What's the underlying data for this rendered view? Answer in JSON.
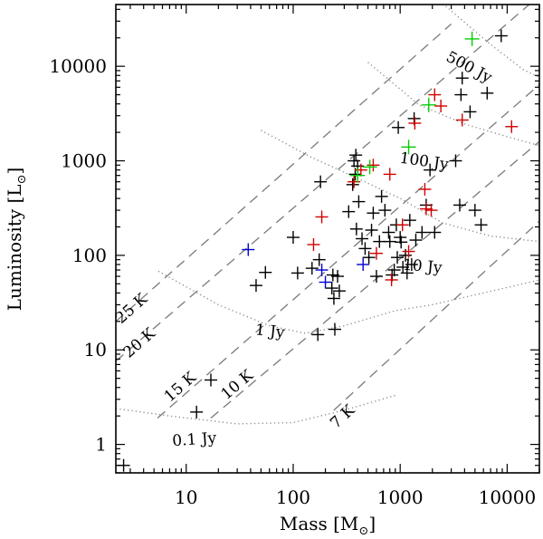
{
  "chart_data": {
    "type": "scatter",
    "xlabel": "Mass [M",
    "xlabel_sub": "⊙",
    "xlabel_end": "]",
    "ylabel": "Luminosity [L",
    "ylabel_sub": "⊙",
    "ylabel_end": "]",
    "x_scale": "log",
    "y_scale": "log",
    "xlim": [
      2.2,
      20000
    ],
    "ylim": [
      0.5,
      45000
    ],
    "xticks": [
      {
        "value": 10,
        "label": "10"
      },
      {
        "value": 100,
        "label": "100"
      },
      {
        "value": 1000,
        "label": "1000"
      },
      {
        "value": 10000,
        "label": "10000"
      }
    ],
    "yticks": [
      {
        "value": 1,
        "label": "1"
      },
      {
        "value": 10,
        "label": "10"
      },
      {
        "value": 100,
        "label": "100"
      },
      {
        "value": 1000,
        "label": "1000"
      },
      {
        "value": 10000,
        "label": "10000"
      }
    ],
    "temperature_lines": [
      {
        "label": "25 K",
        "points": [
          [
            2.2,
            20
          ],
          [
            3000,
            28000
          ]
        ],
        "label_at": [
          3.3,
          25
        ]
      },
      {
        "label": "20 K",
        "points": [
          [
            2.2,
            7.6
          ],
          [
            19000,
            53000
          ]
        ],
        "label_at": [
          3.9,
          10.8
        ]
      },
      {
        "label": "15 K",
        "points": [
          [
            5.4,
            1.9
          ],
          [
            20000,
            6400
          ]
        ],
        "label_at": [
          9.4,
          3.7
        ]
      },
      {
        "label": "10 K",
        "points": [
          [
            17,
            1.9
          ],
          [
            20000,
            1600
          ]
        ],
        "label_at": [
          32,
          3.9
        ]
      },
      {
        "label": "7 K",
        "points": [
          [
            240,
            2.3
          ],
          [
            20000,
            230
          ]
        ],
        "label_at": [
          310,
          1.8
        ]
      }
    ],
    "flux_lines": [
      {
        "label": "0.1 Jy",
        "points": [
          [
            2.2,
            2.4
          ],
          [
            7,
            2.0
          ],
          [
            30,
            1.65
          ],
          [
            100,
            1.7
          ],
          [
            300,
            2.3
          ],
          [
            900,
            3.3
          ]
        ],
        "label_at": [
          12,
          1.0
        ]
      },
      {
        "label": "1 Jy",
        "points": [
          [
            5.5,
            68
          ],
          [
            20,
            30
          ],
          [
            60,
            18
          ],
          [
            130,
            15
          ],
          [
            300,
            18
          ],
          [
            900,
            26
          ],
          [
            2000,
            30
          ],
          [
            6000,
            40
          ],
          [
            20000,
            55
          ]
        ],
        "label_at": [
          60,
          14
        ]
      },
      {
        "label": "10 Jy",
        "points": [
          [
            50,
            2100
          ],
          [
            150,
            1080
          ],
          [
            400,
            650
          ],
          [
            1000,
            400
          ],
          [
            2500,
            220
          ],
          [
            7000,
            160
          ],
          [
            20000,
            140
          ]
        ],
        "label_at": [
          1600,
          68
        ]
      },
      {
        "label": "100 Jy",
        "points": [
          [
            500,
            11000
          ],
          [
            1500,
            3900
          ],
          [
            4000,
            2450
          ],
          [
            10000,
            1800
          ],
          [
            20000,
            1450
          ]
        ],
        "label_at": [
          1650,
          880
        ]
      },
      {
        "label": "500 Jy",
        "points": [
          [
            2500,
            46000
          ],
          [
            7000,
            17000
          ],
          [
            14000,
            9300
          ],
          [
            20000,
            7600
          ]
        ],
        "label_at": [
          4200,
          8800
        ]
      }
    ],
    "series": [
      {
        "color": "#000000",
        "points": [
          [
            2.6,
            0.6
          ],
          [
            12.5,
            2.2
          ],
          [
            17,
            4.8
          ],
          [
            45,
            48
          ],
          [
            55,
            66
          ],
          [
            100,
            155
          ],
          [
            110,
            65
          ],
          [
            150,
            73
          ],
          [
            170,
            14.5
          ],
          [
            175,
            90
          ],
          [
            180,
            600
          ],
          [
            230,
            45
          ],
          [
            235,
            62
          ],
          [
            240,
            35
          ],
          [
            245,
            16.5
          ],
          [
            260,
            60
          ],
          [
            270,
            42
          ],
          [
            330,
            290
          ],
          [
            360,
            560
          ],
          [
            370,
            1000
          ],
          [
            380,
            720
          ],
          [
            385,
            1150
          ],
          [
            390,
            190
          ],
          [
            400,
            880
          ],
          [
            410,
            370
          ],
          [
            440,
            150
          ],
          [
            470,
            118
          ],
          [
            510,
            95
          ],
          [
            540,
            185
          ],
          [
            560,
            280
          ],
          [
            600,
            60
          ],
          [
            640,
            140
          ],
          [
            670,
            420
          ],
          [
            720,
            300
          ],
          [
            780,
            175
          ],
          [
            800,
            140
          ],
          [
            840,
            62
          ],
          [
            880,
            70
          ],
          [
            920,
            210
          ],
          [
            940,
            95
          ],
          [
            960,
            2250
          ],
          [
            1000,
            155
          ],
          [
            1020,
            138
          ],
          [
            1060,
            75
          ],
          [
            1120,
            100
          ],
          [
            1160,
            65
          ],
          [
            1230,
            235
          ],
          [
            1280,
            80
          ],
          [
            1350,
            2800
          ],
          [
            1400,
            145
          ],
          [
            1600,
            175
          ],
          [
            1750,
            340
          ],
          [
            1900,
            800
          ],
          [
            2100,
            175
          ],
          [
            3300,
            1000
          ],
          [
            3600,
            340
          ],
          [
            3700,
            5000
          ],
          [
            3800,
            7500
          ],
          [
            4500,
            3300
          ],
          [
            5000,
            300
          ],
          [
            5700,
            210
          ],
          [
            6500,
            5200
          ],
          [
            8800,
            21000
          ]
        ]
      },
      {
        "color": "#d10000",
        "points": [
          [
            155,
            130
          ],
          [
            185,
            255
          ],
          [
            370,
            600
          ],
          [
            430,
            800
          ],
          [
            560,
            900
          ],
          [
            600,
            105
          ],
          [
            800,
            720
          ],
          [
            830,
            55
          ],
          [
            1050,
            210
          ],
          [
            1200,
            110
          ],
          [
            1370,
            2500
          ],
          [
            1700,
            500
          ],
          [
            1750,
            310
          ],
          [
            1950,
            300
          ],
          [
            2100,
            5000
          ],
          [
            2400,
            3800
          ],
          [
            3800,
            2700
          ],
          [
            11000,
            2300
          ]
        ]
      },
      {
        "color": "#0000d1",
        "points": [
          [
            38,
            115
          ],
          [
            185,
            70
          ],
          [
            200,
            52
          ],
          [
            450,
            80
          ]
        ]
      },
      {
        "color": "#00cc00",
        "points": [
          [
            400,
            700
          ],
          [
            520,
            860
          ],
          [
            1200,
            1400
          ],
          [
            1850,
            3900
          ],
          [
            4700,
            19500
          ]
        ]
      }
    ]
  }
}
